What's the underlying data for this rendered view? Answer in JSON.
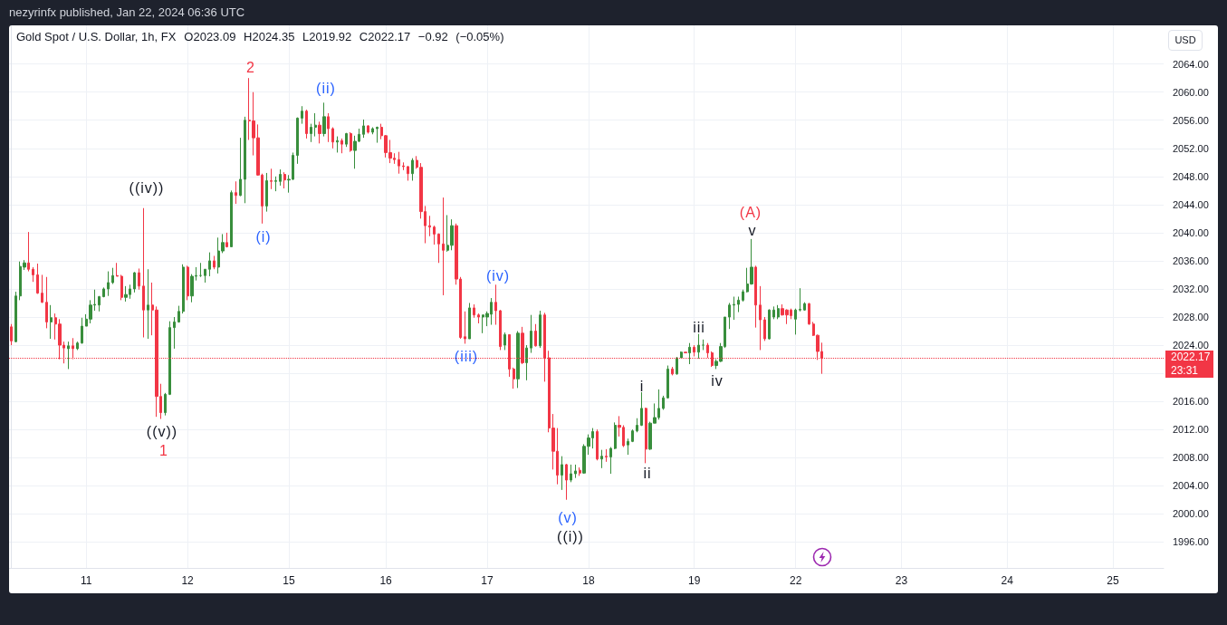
{
  "chart_data": {
    "type": "candlestick",
    "title": "Gold Spot / U.S. Dollar, 1h, FX",
    "subtitle": "O2023.09 H2024.35 L2019.92 C2022.17 −0.92 (−0.05%)",
    "ylabel": "USD",
    "categories": [
      null,
      null,
      null,
      null,
      null,
      null,
      null,
      null,
      null,
      null,
      null,
      null,
      null,
      null,
      null,
      null,
      null,
      "11",
      null,
      null,
      null,
      null,
      null,
      null,
      null,
      null,
      null,
      null,
      null,
      null,
      null,
      null,
      null,
      null,
      null,
      null,
      null,
      null,
      null,
      null,
      "12",
      null,
      null,
      null,
      null,
      null,
      null,
      null,
      null,
      null,
      null,
      null,
      null,
      null,
      null,
      null,
      null,
      null,
      null,
      null,
      null,
      null,
      null,
      "15",
      null,
      null,
      null,
      null,
      null,
      null,
      null,
      null,
      null,
      null,
      null,
      null,
      null,
      null,
      null,
      null,
      null,
      null,
      null,
      null,
      null,
      "16",
      null,
      null,
      null,
      null,
      null,
      null,
      null,
      null,
      null,
      null,
      null,
      null,
      null,
      null,
      null,
      null,
      null,
      null,
      null,
      null,
      null,
      null,
      "17",
      null,
      null,
      null,
      null,
      null,
      null,
      null,
      null,
      null,
      null,
      null,
      null,
      null,
      null,
      null,
      null,
      null,
      null,
      null,
      null,
      null,
      null,
      "18",
      null,
      null,
      null,
      null,
      null,
      null,
      null,
      null,
      null,
      null,
      null,
      null,
      null,
      null,
      null,
      null,
      null,
      null,
      null,
      null,
      null,
      null,
      null,
      "19",
      null,
      null,
      null,
      null,
      null,
      null,
      null,
      null,
      null,
      null,
      null,
      null,
      null,
      null,
      null,
      null,
      null,
      null,
      null,
      null,
      null,
      null,
      "22",
      null,
      null,
      null,
      null,
      null,
      null,
      null,
      null,
      null,
      null,
      null,
      null,
      null,
      null,
      null,
      null,
      null,
      null,
      null,
      null,
      null,
      null,
      null,
      "23",
      null,
      null,
      null,
      null,
      null,
      null,
      null,
      null,
      null,
      null,
      null,
      null,
      null,
      null,
      null,
      null,
      null,
      null,
      null,
      null,
      null,
      null,
      null,
      "24",
      null,
      null,
      null,
      null,
      null,
      null,
      null,
      null,
      null,
      null,
      null,
      null,
      null,
      null,
      null,
      null,
      null,
      null,
      null,
      null,
      null,
      null,
      null,
      "25",
      null,
      null,
      null,
      null,
      null,
      null,
      null,
      null,
      null,
      null,
      null
    ],
    "ohlc": [
      [
        2026.6,
        2027.0,
        2024.0,
        2024.6
      ],
      [
        2024.5,
        2031.6,
        2024.4,
        2031.0
      ],
      [
        2031.0,
        2035.9,
        2030.4,
        2035.2
      ],
      [
        2035.1,
        2036.1,
        2034.7,
        2035.7
      ],
      [
        2035.7,
        2040.1,
        2034.5,
        2034.8
      ],
      [
        2034.8,
        2035.1,
        2033.0,
        2034.0
      ],
      [
        2034.0,
        2035.6,
        2031.3,
        2031.4
      ],
      [
        2031.4,
        2034.0,
        2030.0,
        2030.1
      ],
      [
        2030.1,
        2033.7,
        2026.4,
        2027.3
      ],
      [
        2027.3,
        2029.7,
        2024.9,
        2027.9
      ],
      [
        2027.9,
        2028.5,
        2024.8,
        2027.0
      ],
      [
        2027.0,
        2027.7,
        2022.0,
        2024.0
      ],
      [
        2024.0,
        2024.5,
        2021.4,
        2023.6
      ],
      [
        2023.5,
        2024.5,
        2020.6,
        2023.9
      ],
      [
        2023.9,
        2025.0,
        2022.0,
        2023.5
      ],
      [
        2023.5,
        2024.5,
        2023.3,
        2024.3
      ],
      [
        2024.3,
        2027.9,
        2024.2,
        2026.7
      ],
      [
        2026.7,
        2028.4,
        2026.7,
        2027.7
      ],
      [
        2027.7,
        2030.4,
        2027.1,
        2029.7
      ],
      [
        2029.7,
        2031.9,
        2028.9,
        2029.8
      ],
      [
        2029.7,
        2031.0,
        2028.8,
        2030.9
      ],
      [
        2030.9,
        2032.2,
        2030.8,
        2032.0
      ],
      [
        2032.0,
        2034.5,
        2031.0,
        2032.9
      ],
      [
        2032.9,
        2035.0,
        2032.7,
        2033.9
      ],
      [
        2033.9,
        2035.7,
        2033.8,
        2033.8
      ],
      [
        2033.8,
        2034.0,
        2030.4,
        2030.8
      ],
      [
        2030.8,
        2032.4,
        2030.2,
        2031.2
      ],
      [
        2031.2,
        2032.6,
        2030.6,
        2032.0
      ],
      [
        2032.0,
        2034.4,
        2031.5,
        2034.3
      ],
      [
        2034.3,
        2034.9,
        2031.9,
        2032.4
      ],
      [
        2032.4,
        2043.5,
        2025.1,
        2029.0
      ],
      [
        2029.0,
        2034.8,
        2024.9,
        2029.7
      ],
      [
        2029.7,
        2032.9,
        2025.4,
        2029.0
      ],
      [
        2029.0,
        2029.5,
        2013.8,
        2016.7
      ],
      [
        2016.7,
        2018.5,
        2013.5,
        2014.4
      ],
      [
        2014.4,
        2017.2,
        2014.0,
        2017.0
      ],
      [
        2017.0,
        2027.4,
        2016.9,
        2026.5
      ],
      [
        2026.5,
        2028.0,
        2023.5,
        2027.3
      ],
      [
        2027.3,
        2029.6,
        2027.2,
        2028.8
      ],
      [
        2028.8,
        2035.5,
        2028.5,
        2035.1
      ],
      [
        2035.1,
        2035.3,
        2030.4,
        2031.0
      ],
      [
        2031.0,
        2034.1,
        2030.1,
        2033.8
      ],
      [
        2033.8,
        2035.1,
        2033.2,
        2033.9
      ],
      [
        2033.9,
        2035.7,
        2033.7,
        2033.9
      ],
      [
        2033.9,
        2034.8,
        2032.9,
        2034.8
      ],
      [
        2034.8,
        2037.2,
        2033.8,
        2036.0
      ],
      [
        2036.0,
        2036.7,
        2034.8,
        2035.1
      ],
      [
        2035.1,
        2039.3,
        2034.2,
        2037.4
      ],
      [
        2037.4,
        2039.8,
        2037.1,
        2038.6
      ],
      [
        2038.6,
        2040.0,
        2037.9,
        2038.0
      ],
      [
        2038.0,
        2046.0,
        2038.0,
        2045.7
      ],
      [
        2045.7,
        2047.3,
        2044.1,
        2045.3
      ],
      [
        2045.3,
        2053.5,
        2045.2,
        2047.6
      ],
      [
        2047.6,
        2056.5,
        2044.2,
        2056.0
      ],
      [
        2056.0,
        2062.0,
        2053.2,
        2055.9
      ],
      [
        2055.9,
        2060.0,
        2051.0,
        2053.5
      ],
      [
        2053.5,
        2055.4,
        2048.1,
        2048.2
      ],
      [
        2048.2,
        2048.4,
        2041.3,
        2043.8
      ],
      [
        2043.8,
        2048.5,
        2043.0,
        2047.4
      ],
      [
        2047.4,
        2049.1,
        2046.2,
        2047.3
      ],
      [
        2047.3,
        2048.0,
        2045.9,
        2047.4
      ],
      [
        2047.3,
        2049.0,
        2046.7,
        2048.3
      ],
      [
        2048.3,
        2048.6,
        2046.3,
        2047.5
      ],
      [
        2047.5,
        2048.2,
        2045.7,
        2047.6
      ],
      [
        2047.6,
        2051.4,
        2047.5,
        2051.0
      ],
      [
        2051.0,
        2056.4,
        2049.8,
        2056.3
      ],
      [
        2056.3,
        2058.0,
        2055.5,
        2057.3
      ],
      [
        2057.3,
        2057.5,
        2053.4,
        2054.1
      ],
      [
        2054.1,
        2055.5,
        2052.9,
        2055.0
      ],
      [
        2055.0,
        2057.0,
        2053.7,
        2055.3
      ],
      [
        2055.3,
        2055.8,
        2052.7,
        2054.1
      ],
      [
        2054.1,
        2058.5,
        2053.7,
        2056.5
      ],
      [
        2056.5,
        2057.0,
        2052.9,
        2054.8
      ],
      [
        2054.8,
        2055.0,
        2052.0,
        2052.9
      ],
      [
        2052.9,
        2053.7,
        2051.4,
        2053.1
      ],
      [
        2053.1,
        2053.4,
        2051.3,
        2052.6
      ],
      [
        2052.6,
        2054.2,
        2052.2,
        2054.1
      ],
      [
        2054.1,
        2054.3,
        2051.5,
        2051.7
      ],
      [
        2051.7,
        2053.8,
        2049.1,
        2053.0
      ],
      [
        2053.0,
        2054.8,
        2052.9,
        2054.0
      ],
      [
        2054.0,
        2056.1,
        2053.5,
        2055.2
      ],
      [
        2055.2,
        2055.3,
        2054.1,
        2054.3
      ],
      [
        2054.3,
        2055.0,
        2054.0,
        2054.8
      ],
      [
        2054.8,
        2055.1,
        2052.8,
        2055.0
      ],
      [
        2055.0,
        2055.5,
        2053.3,
        2053.8
      ],
      [
        2053.8,
        2053.9,
        2050.7,
        2051.4
      ],
      [
        2051.4,
        2053.2,
        2049.9,
        2050.6
      ],
      [
        2050.6,
        2051.3,
        2049.8,
        2050.4
      ],
      [
        2050.4,
        2051.5,
        2048.4,
        2049.5
      ],
      [
        2049.5,
        2050.0,
        2048.9,
        2049.4
      ],
      [
        2049.4,
        2049.5,
        2047.4,
        2048.4
      ],
      [
        2048.4,
        2050.6,
        2047.4,
        2050.3
      ],
      [
        2050.3,
        2050.9,
        2049.1,
        2049.3
      ],
      [
        2049.3,
        2049.9,
        2042.0,
        2043.0
      ],
      [
        2043.0,
        2043.8,
        2038.5,
        2041.0
      ],
      [
        2041.0,
        2042.4,
        2039.5,
        2040.8
      ],
      [
        2040.8,
        2041.0,
        2038.3,
        2039.8
      ],
      [
        2039.8,
        2039.9,
        2035.7,
        2038.4
      ],
      [
        2038.4,
        2045.0,
        2031.1,
        2037.5
      ],
      [
        2037.5,
        2042.5,
        2037.3,
        2038.2
      ],
      [
        2038.2,
        2041.9,
        2037.5,
        2041.0
      ],
      [
        2041.0,
        2041.3,
        2032.6,
        2033.4
      ],
      [
        2033.4,
        2033.7,
        2024.9,
        2025.1
      ],
      [
        2025.2,
        2028.8,
        2024.2,
        2024.9
      ],
      [
        2024.9,
        2030.0,
        2024.9,
        2029.3
      ],
      [
        2029.3,
        2029.8,
        2027.9,
        2028.3
      ],
      [
        2028.3,
        2028.5,
        2027.1,
        2028.0
      ],
      [
        2028.0,
        2028.3,
        2025.7,
        2028.3
      ],
      [
        2028.0,
        2028.8,
        2026.7,
        2028.5
      ],
      [
        2028.4,
        2030.7,
        2026.9,
        2030.1
      ],
      [
        2030.1,
        2032.6,
        2026.9,
        2028.9
      ],
      [
        2028.9,
        2029.0,
        2023.3,
        2023.8
      ],
      [
        2024.0,
        2025.8,
        2023.3,
        2025.5
      ],
      [
        2025.5,
        2025.5,
        2019.5,
        2020.6
      ],
      [
        2020.6,
        2020.8,
        2017.8,
        2019.2
      ],
      [
        2019.2,
        2026.0,
        2017.9,
        2025.7
      ],
      [
        2025.7,
        2026.6,
        2021.3,
        2021.5
      ],
      [
        2021.5,
        2024.0,
        2019.0,
        2023.6
      ],
      [
        2023.6,
        2028.3,
        2022.9,
        2026.0
      ],
      [
        2026.0,
        2027.0,
        2023.8,
        2023.9
      ],
      [
        2023.9,
        2028.9,
        2023.6,
        2028.3
      ],
      [
        2028.3,
        2028.6,
        2018.8,
        2022.2
      ],
      [
        2022.2,
        2023.2,
        2011.6,
        2012.2
      ],
      [
        2012.2,
        2014.2,
        2006.3,
        2008.9
      ],
      [
        2008.9,
        2012.2,
        2004.2,
        2005.5
      ],
      [
        2005.5,
        2008.2,
        2003.4,
        2007.0
      ],
      [
        2007.0,
        2007.1,
        2002.0,
        2004.8
      ],
      [
        2004.8,
        2007.0,
        2004.5,
        2005.7
      ],
      [
        2005.7,
        2007.0,
        2005.1,
        2006.1
      ],
      [
        2006.2,
        2006.6,
        2005.4,
        2005.8
      ],
      [
        2005.8,
        2009.9,
        2005.7,
        2009.6
      ],
      [
        2009.6,
        2011.3,
        2008.4,
        2010.8
      ],
      [
        2010.8,
        2012.2,
        2009.3,
        2011.7
      ],
      [
        2011.7,
        2012.0,
        2007.6,
        2007.8
      ],
      [
        2007.8,
        2009.1,
        2006.5,
        2008.2
      ],
      [
        2008.2,
        2009.2,
        2007.4,
        2008.1
      ],
      [
        2008.1,
        2009.5,
        2005.7,
        2009.3
      ],
      [
        2009.3,
        2013.0,
        2009.2,
        2012.6
      ],
      [
        2012.6,
        2013.9,
        2011.0,
        2012.3
      ],
      [
        2012.3,
        2012.6,
        2009.5,
        2009.7
      ],
      [
        2009.8,
        2010.7,
        2008.4,
        2010.3
      ],
      [
        2010.3,
        2012.0,
        2010.2,
        2011.8
      ],
      [
        2011.8,
        2013.6,
        2011.6,
        2012.6
      ],
      [
        2012.6,
        2017.3,
        2012.5,
        2015.0
      ],
      [
        2015.0,
        2015.1,
        2007.2,
        2009.2
      ],
      [
        2009.2,
        2013.1,
        2009.1,
        2012.9
      ],
      [
        2012.9,
        2015.7,
        2012.9,
        2013.7
      ],
      [
        2013.7,
        2017.7,
        2013.4,
        2015.0
      ],
      [
        2015.0,
        2016.8,
        2014.8,
        2016.5
      ],
      [
        2016.5,
        2021.1,
        2016.4,
        2020.6
      ],
      [
        2020.6,
        2020.9,
        2019.7,
        2019.9
      ],
      [
        2019.9,
        2022.3,
        2019.8,
        2022.2
      ],
      [
        2022.2,
        2023.1,
        2022.2,
        2023.0
      ],
      [
        2023.0,
        2023.0,
        2022.9,
        2022.9
      ],
      [
        2022.9,
        2024.3,
        2021.3,
        2023.7
      ],
      [
        2023.7,
        2024.0,
        2022.4,
        2023.0
      ],
      [
        2023.0,
        2025.6,
        2022.1,
        2024.0
      ],
      [
        2024.0,
        2024.8,
        2023.3,
        2024.0
      ],
      [
        2024.0,
        2024.3,
        2022.2,
        2022.9
      ],
      [
        2022.9,
        2023.1,
        2020.9,
        2021.1
      ],
      [
        2021.1,
        2022.0,
        2020.6,
        2021.7
      ],
      [
        2021.7,
        2024.3,
        2021.6,
        2023.8
      ],
      [
        2023.8,
        2028.0,
        2023.6,
        2028.0
      ],
      [
        2028.0,
        2030.0,
        2026.3,
        2029.7
      ],
      [
        2029.7,
        2030.9,
        2027.6,
        2029.8
      ],
      [
        2029.8,
        2030.9,
        2028.7,
        2030.4
      ],
      [
        2030.4,
        2031.9,
        2030.2,
        2031.6
      ],
      [
        2031.6,
        2035.0,
        2031.5,
        2032.7
      ],
      [
        2032.7,
        2039.1,
        2032.6,
        2035.1
      ],
      [
        2035.1,
        2035.3,
        2026.5,
        2029.7
      ],
      [
        2029.7,
        2032.4,
        2023.3,
        2027.6
      ],
      [
        2027.6,
        2028.0,
        2024.6,
        2024.9
      ],
      [
        2024.9,
        2029.1,
        2024.8,
        2029.0
      ],
      [
        2028.0,
        2029.5,
        2027.7,
        2029.0
      ],
      [
        2028.0,
        2029.7,
        2027.7,
        2029.2
      ],
      [
        2029.2,
        2029.8,
        2028.2,
        2028.3
      ],
      [
        2029.0,
        2029.1,
        2027.0,
        2028.3
      ],
      [
        2029.0,
        2029.2,
        2027.7,
        2028.2
      ],
      [
        2027.7,
        2029.2,
        2025.5,
        2029.0
      ],
      [
        2029.0,
        2032.1,
        2028.8,
        2029.1
      ],
      [
        2029.0,
        2030.1,
        2028.9,
        2029.9
      ],
      [
        2029.9,
        2030.0,
        2026.9,
        2027.0
      ],
      [
        2027.0,
        2027.3,
        2025.3,
        2025.4
      ],
      [
        2025.4,
        2025.5,
        2021.9,
        2023.1
      ],
      [
        2023.09,
        2024.35,
        2019.92,
        2022.17
      ],
      null,
      null,
      null,
      null,
      null,
      null,
      null,
      null,
      null,
      null,
      null,
      null,
      null,
      null,
      null,
      null,
      null,
      null,
      null,
      null,
      null,
      null,
      null,
      null,
      null,
      null,
      null,
      null,
      null,
      null,
      null,
      null,
      null,
      null,
      null,
      null,
      null,
      null,
      null,
      null,
      null,
      null,
      null,
      null,
      null,
      null,
      null,
      null,
      null,
      null,
      null,
      null,
      null,
      null,
      null,
      null,
      null,
      null,
      null,
      null,
      null,
      null,
      null,
      null,
      null,
      null,
      null,
      null,
      null,
      null,
      null,
      null,
      null,
      null,
      null,
      null,
      null
    ],
    "colors": [
      "#f23645",
      "#388e3c",
      "#388e3c",
      "#388e3c",
      "#f23645",
      "#f23645",
      "#f23645",
      "#f23645",
      "#f23645",
      "#388e3c",
      "#f23645",
      "#f23645",
      "#f23645",
      "#388e3c",
      "#f23645",
      "#388e3c",
      "#388e3c",
      "#388e3c",
      "#388e3c",
      "#388e3c",
      "#388e3c",
      "#388e3c",
      "#388e3c",
      "#388e3c",
      "#f23645",
      "#f23645",
      "#388e3c",
      "#388e3c",
      "#388e3c",
      "#f23645",
      "#f23645",
      "#388e3c",
      "#f23645",
      "#f23645",
      "#f23645",
      "#388e3c",
      "#388e3c",
      "#388e3c",
      "#388e3c",
      "#388e3c",
      "#f23645",
      "#388e3c",
      "#388e3c",
      "#388e3c",
      "#388e3c",
      "#388e3c",
      "#f23645",
      "#388e3c",
      "#388e3c",
      "#f23645",
      "#388e3c",
      "#f23645",
      "#388e3c",
      "#388e3c",
      "#f23645",
      "#f23645",
      "#f23645",
      "#f23645",
      "#388e3c",
      "#f23645",
      "#388e3c",
      "#388e3c",
      "#f23645",
      "#388e3c",
      "#388e3c",
      "#388e3c",
      "#388e3c",
      "#f23645",
      "#388e3c",
      "#388e3c",
      "#f23645",
      "#388e3c",
      "#f23645",
      "#f23645",
      "#388e3c",
      "#f23645",
      "#388e3c",
      "#f23645",
      "#388e3c",
      "#388e3c",
      "#388e3c",
      "#f23645",
      "#388e3c",
      "#388e3c",
      "#f23645",
      "#f23645",
      "#f23645",
      "#f23645",
      "#f23645",
      "#f23645",
      "#f23645",
      "#388e3c",
      "#f23645",
      "#f23645",
      "#f23645",
      "#f23645",
      "#f23645",
      "#f23645",
      "#f23645",
      "#388e3c",
      "#388e3c",
      "#f23645",
      "#f23645",
      "#f23645",
      "#388e3c",
      "#f23645",
      "#f23645",
      "#388e3c",
      "#388e3c",
      "#388e3c",
      "#f23645",
      "#f23645",
      "#388e3c",
      "#f23645",
      "#f23645",
      "#388e3c",
      "#f23645",
      "#388e3c",
      "#388e3c",
      "#f23645",
      "#388e3c",
      "#f23645",
      "#f23645",
      "#f23645",
      "#f23645",
      "#388e3c",
      "#f23645",
      "#388e3c",
      "#388e3c",
      "#f23645",
      "#388e3c",
      "#388e3c",
      "#388e3c",
      "#f23645",
      "#388e3c",
      "#f23645",
      "#388e3c",
      "#388e3c",
      "#f23645",
      "#f23645",
      "#388e3c",
      "#388e3c",
      "#388e3c",
      "#388e3c",
      "#f23645",
      "#388e3c",
      "#388e3c",
      "#388e3c",
      "#388e3c",
      "#388e3c",
      "#f23645",
      "#388e3c",
      "#388e3c",
      "#f23645",
      "#388e3c",
      "#f23645",
      "#388e3c",
      "#388e3c",
      "#f23645",
      "#f23645",
      "#388e3c",
      "#388e3c",
      "#388e3c",
      "#388e3c",
      "#388e3c",
      "#388e3c",
      "#388e3c",
      "#388e3c",
      "#388e3c",
      "#f23645",
      "#f23645",
      "#f23645",
      "#388e3c",
      "#388e3c",
      "#388e3c",
      "#f23645",
      "#f23645",
      "#f23645",
      "#388e3c",
      "#388e3c",
      "#388e3c",
      "#f23645",
      "#f23645",
      "#f23645",
      "#f23645",
      null,
      null,
      null,
      null,
      null,
      null,
      null,
      null,
      null,
      null,
      null,
      null,
      null,
      null,
      null,
      null,
      null,
      null,
      null,
      null,
      null,
      null,
      null,
      null,
      null,
      null,
      null,
      null,
      null,
      null,
      null,
      null,
      null,
      null,
      null,
      null,
      null,
      null,
      null,
      null,
      null,
      null,
      null,
      null,
      null,
      null,
      null,
      null,
      null,
      null,
      null,
      null,
      null,
      null,
      null,
      null,
      null,
      null,
      null,
      null,
      null,
      null,
      null,
      null,
      null,
      null,
      null,
      null,
      null,
      null,
      null,
      null,
      null,
      null,
      null,
      null,
      null
    ],
    "ylim": [
      1992.3,
      2069.5
    ],
    "yticks": [
      {
        "value": 1996,
        "label": "1996.00"
      },
      {
        "value": 2000,
        "label": "2000.00"
      },
      {
        "value": 2004,
        "label": "2004.00"
      },
      {
        "value": 2008,
        "label": "2008.00"
      },
      {
        "value": 2012,
        "label": "2012.00"
      },
      {
        "value": 2016,
        "label": "2016.00"
      },
      {
        "value": 2020,
        "label": null
      },
      {
        "value": 2024,
        "label": "2024.00"
      },
      {
        "value": 2028,
        "label": "2028.00"
      },
      {
        "value": 2032,
        "label": "2032.00"
      },
      {
        "value": 2036,
        "label": "2036.00"
      },
      {
        "value": 2040,
        "label": "2040.00"
      },
      {
        "value": 2044,
        "label": "2044.00"
      },
      {
        "value": 2048,
        "label": "2048.00"
      },
      {
        "value": 2052,
        "label": "2052.00"
      },
      {
        "value": 2056,
        "label": "2056.00"
      },
      {
        "value": 2060,
        "label": "2060.00"
      },
      {
        "value": 2064,
        "label": "2064.00"
      }
    ],
    "grid": true,
    "ref_lines": [
      {
        "axis": "y",
        "value": 2022.17,
        "label": "2022.17",
        "color": "#f23645",
        "line_style": "dotted"
      }
    ],
    "annotations": [
      "nezyrinfx published, Jan 22, 2024 06:36 UTC",
      "((iv))",
      "((v))",
      "1",
      "2",
      "(i)",
      "(ii)",
      "(iii)",
      "(iv)",
      "(v)",
      "((i))",
      "i",
      "ii",
      "iii",
      "iv",
      "v",
      "(A)",
      "23:31"
    ]
  }
}
